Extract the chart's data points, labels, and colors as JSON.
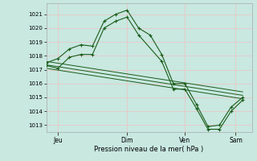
{
  "bg_color": "#c8e8e0",
  "plot_bg_color": "#c8e8e0",
  "grid_color": "#e8c8c8",
  "line_color": "#1a5c1a",
  "marker_color": "#1a5c1a",
  "spine_color": "#aaaaaa",
  "ylabel_values": [
    1013,
    1014,
    1015,
    1016,
    1017,
    1018,
    1019,
    1020,
    1021
  ],
  "ylim": [
    1012.5,
    1021.8
  ],
  "xlabel": "Pression niveau de la mer( hPa )",
  "xtick_labels": [
    "Jeu",
    "Dim",
    "Ven",
    "Sam"
  ],
  "xtick_positions": [
    0.5,
    3.5,
    6.0,
    8.2
  ],
  "series1_x": [
    0.0,
    0.5,
    1.0,
    1.5,
    2.0,
    2.5,
    3.0,
    3.5,
    4.0,
    4.5,
    5.0,
    5.5,
    6.0,
    6.5,
    7.0,
    7.5,
    8.0,
    8.5
  ],
  "series1_y": [
    1017.5,
    1017.8,
    1018.5,
    1018.8,
    1018.7,
    1020.5,
    1021.0,
    1021.3,
    1020.0,
    1019.5,
    1018.1,
    1016.0,
    1016.0,
    1014.5,
    1012.9,
    1013.0,
    1014.3,
    1015.0
  ],
  "series2_x": [
    0.0,
    0.5,
    1.0,
    1.5,
    2.0,
    2.5,
    3.0,
    3.5,
    4.0,
    5.0,
    5.5,
    6.0,
    6.5,
    7.0,
    7.5,
    8.0,
    8.5
  ],
  "series2_y": [
    1017.3,
    1017.1,
    1017.9,
    1018.1,
    1018.1,
    1020.0,
    1020.5,
    1020.8,
    1019.5,
    1017.6,
    1015.6,
    1015.6,
    1014.2,
    1012.7,
    1012.7,
    1014.0,
    1014.8
  ],
  "line1_x": [
    0.0,
    8.5
  ],
  "line1_y": [
    1017.6,
    1015.4
  ],
  "line2_x": [
    0.0,
    8.5
  ],
  "line2_y": [
    1017.35,
    1015.15
  ],
  "line3_x": [
    0.0,
    8.5
  ],
  "line3_y": [
    1017.1,
    1014.9
  ],
  "xlim": [
    0.0,
    8.9
  ]
}
